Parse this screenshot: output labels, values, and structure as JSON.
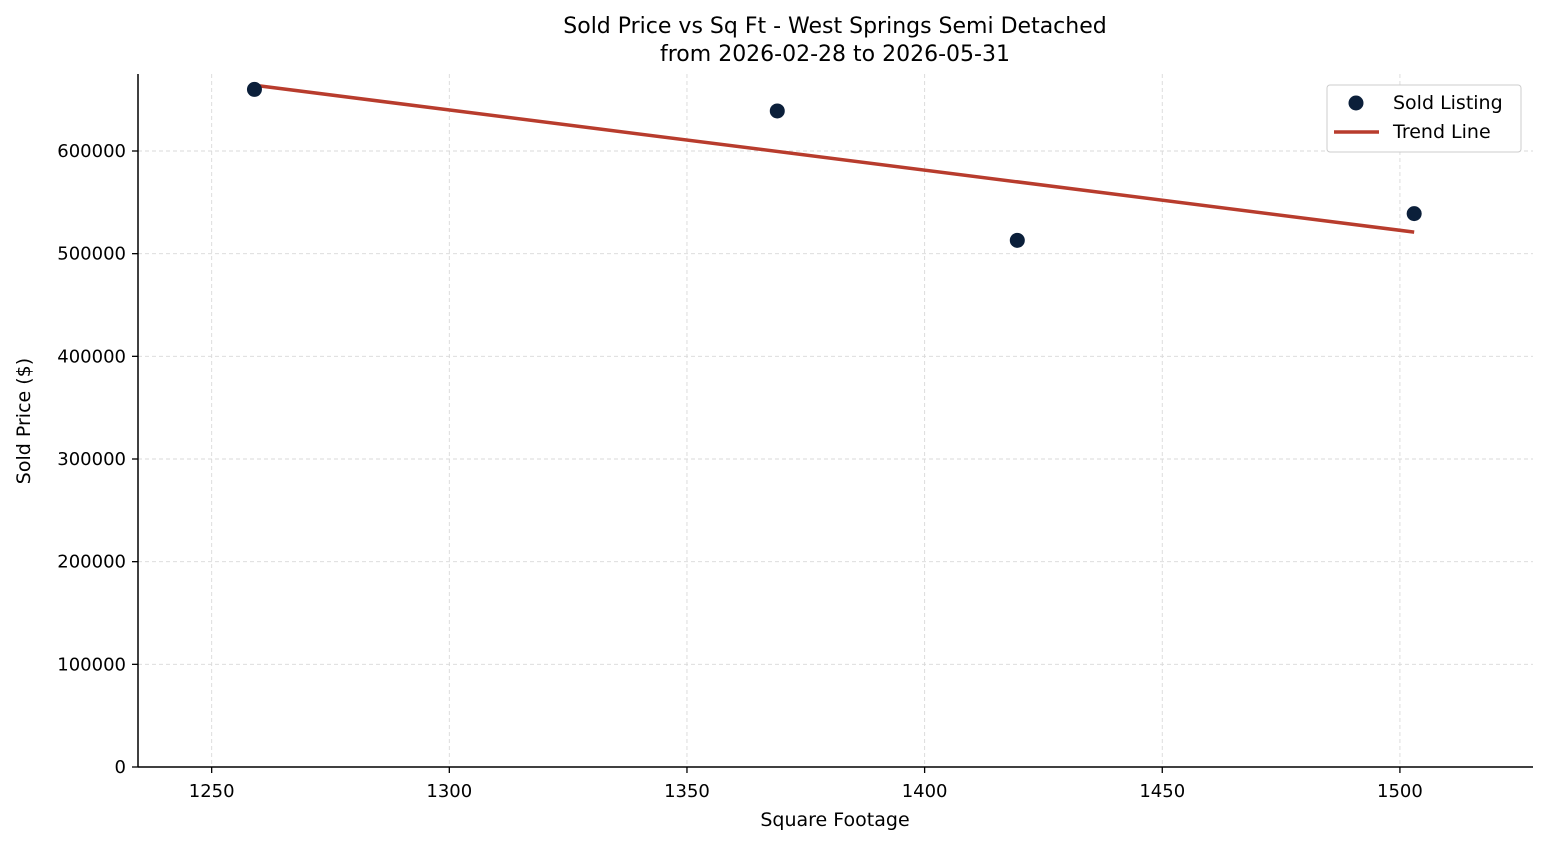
{
  "colors": {
    "point": "#0b1f3a",
    "trend": "#b83c2d",
    "grid": "#d9d9d9"
  },
  "chart_data": {
    "type": "scatter",
    "title_line1": "Sold Price vs Sq Ft - West Springs Semi Detached",
    "title_line2": "from 2026-02-28 to 2026-05-31",
    "xlabel": "Square Footage",
    "ylabel": "Sold Price ($)",
    "xlim": [
      1234.5,
      1528
    ],
    "ylim": [
      0,
      675000
    ],
    "xticks": [
      1250,
      1300,
      1350,
      1400,
      1450,
      1500
    ],
    "yticks": [
      0,
      100000,
      200000,
      300000,
      400000,
      500000,
      600000
    ],
    "grid": true,
    "legend_position": "top-right",
    "series": [
      {
        "name": "Sold Listing",
        "kind": "scatter",
        "points": [
          {
            "x": 1259,
            "y": 660000
          },
          {
            "x": 1369,
            "y": 639000
          },
          {
            "x": 1419.5,
            "y": 513000
          },
          {
            "x": 1503,
            "y": 539000
          }
        ]
      },
      {
        "name": "Trend Line",
        "kind": "line",
        "points": [
          {
            "x": 1259,
            "y": 664000
          },
          {
            "x": 1503,
            "y": 521000
          }
        ]
      }
    ]
  }
}
